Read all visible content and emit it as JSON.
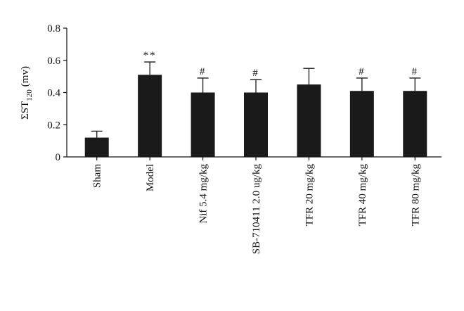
{
  "chart_data": {
    "type": "bar",
    "y_label": {
      "main": "ΣST",
      "subscript": "120",
      "unit": "(mv)"
    },
    "categories": [
      "Sham",
      "Model",
      "Nif 5.4 mg/kg",
      "SB-710411 2.0 ug/kg",
      "TFR 20 mg/kg",
      "TFR 40 mg/kg",
      "TFR 80 mg/kg"
    ],
    "values": [
      0.12,
      0.51,
      0.4,
      0.4,
      0.45,
      0.41,
      0.41
    ],
    "errors": [
      0.04,
      0.08,
      0.09,
      0.08,
      0.1,
      0.08,
      0.08
    ],
    "annotations": [
      null,
      "**",
      "#",
      "#",
      null,
      "#",
      "#"
    ],
    "color": "#1a1a1a",
    "ylim": [
      0,
      0.8
    ],
    "yticks": [
      0,
      0.2,
      0.4,
      0.6,
      0.8
    ],
    "grid": false
  }
}
